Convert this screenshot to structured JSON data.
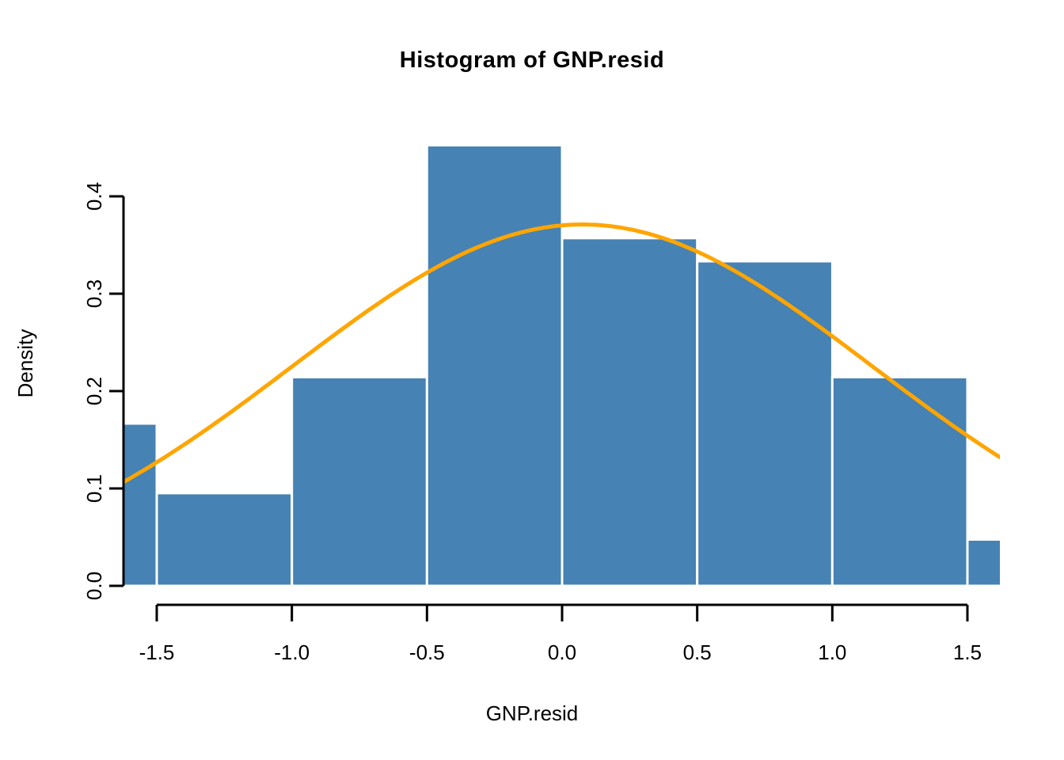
{
  "chart_data": {
    "type": "histogram",
    "title": "Histogram of GNP.resid",
    "xlabel": "GNP.resid",
    "ylabel": "Density",
    "xlim": [
      -1.62,
      1.62
    ],
    "ylim": [
      0,
      0.473
    ],
    "grid": false,
    "legend": "none",
    "x_ticks": [
      {
        "value": -1.5,
        "label": "-1.5"
      },
      {
        "value": -1.0,
        "label": "-1.0"
      },
      {
        "value": -0.5,
        "label": "-0.5"
      },
      {
        "value": 0.0,
        "label": "0.0"
      },
      {
        "value": 0.5,
        "label": "0.5"
      },
      {
        "value": 1.0,
        "label": "1.0"
      },
      {
        "value": 1.5,
        "label": "1.5"
      }
    ],
    "y_ticks": [
      {
        "value": 0.0,
        "label": "0.0"
      },
      {
        "value": 0.1,
        "label": "0.1"
      },
      {
        "value": 0.2,
        "label": "0.2"
      },
      {
        "value": 0.3,
        "label": "0.3"
      },
      {
        "value": 0.4,
        "label": "0.4"
      }
    ],
    "bins": [
      {
        "from": -2.0,
        "to": -1.5,
        "density": 0.1667
      },
      {
        "from": -1.5,
        "to": -1.0,
        "density": 0.0952
      },
      {
        "from": -1.0,
        "to": -0.5,
        "density": 0.2143
      },
      {
        "from": -0.5,
        "to": 0.0,
        "density": 0.4524
      },
      {
        "from": 0.0,
        "to": 0.5,
        "density": 0.3571
      },
      {
        "from": 0.5,
        "to": 1.0,
        "density": 0.3333
      },
      {
        "from": 1.0,
        "to": 1.5,
        "density": 0.2143
      },
      {
        "from": 1.5,
        "to": 2.0,
        "density": 0.0476
      }
    ],
    "curve": {
      "kind": "normal-density",
      "mean": 0.075,
      "sd": 1.075,
      "peak_density": 0.371,
      "color": "#FFA500"
    },
    "colors": {
      "bar_fill": "#4682B4",
      "bar_border": "#FFFFFF",
      "axis": "#000000",
      "text": "#000000",
      "background": "#FFFFFF"
    }
  }
}
